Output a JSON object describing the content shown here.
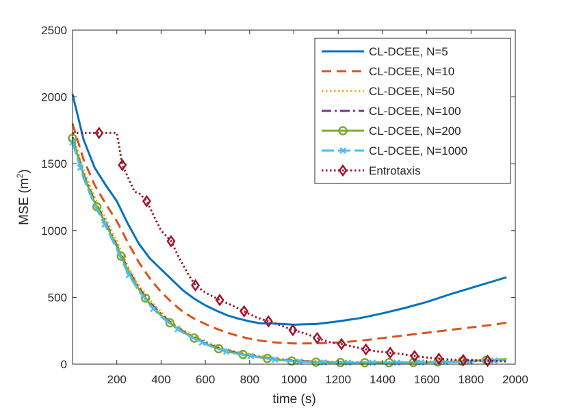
{
  "chart_data": {
    "type": "line",
    "title": "",
    "xlabel": "time (s)",
    "ylabel": "MSE (m",
    "ylabel_sup": "2",
    "ylabel_close": ")",
    "xlim": [
      0,
      2000
    ],
    "ylim": [
      0,
      2500
    ],
    "xticks": [
      200,
      400,
      600,
      800,
      1000,
      1200,
      1400,
      1600,
      1800,
      2000
    ],
    "yticks": [
      0,
      500,
      1000,
      1500,
      2000,
      2500
    ],
    "grid": false,
    "legend_position": "top-right",
    "series": [
      {
        "name": "CL-DCEE, N=5",
        "color": "#0072BD",
        "dash": "solid",
        "marker": "none",
        "x": [
          0,
          50,
          100,
          150,
          200,
          250,
          300,
          350,
          400,
          450,
          500,
          550,
          600,
          650,
          700,
          750,
          800,
          850,
          900,
          950,
          1000,
          1050,
          1100,
          1150,
          1200,
          1300,
          1400,
          1500,
          1600,
          1700,
          1800,
          1900,
          1960
        ],
        "y": [
          2020,
          1680,
          1470,
          1340,
          1220,
          1050,
          900,
          790,
          710,
          630,
          550,
          490,
          440,
          400,
          365,
          340,
          320,
          305,
          305,
          300,
          295,
          298,
          300,
          310,
          320,
          345,
          380,
          420,
          465,
          520,
          570,
          620,
          650
        ]
      },
      {
        "name": "CL-DCEE, N=10",
        "color": "#D95319",
        "dash": "dashed",
        "marker": "none",
        "x": [
          0,
          50,
          100,
          150,
          200,
          250,
          300,
          350,
          400,
          450,
          500,
          550,
          600,
          650,
          700,
          750,
          800,
          850,
          900,
          950,
          1000,
          1050,
          1100,
          1150,
          1200,
          1300,
          1400,
          1500,
          1600,
          1700,
          1800,
          1900,
          1960
        ],
        "y": [
          1800,
          1530,
          1340,
          1200,
          1070,
          910,
          760,
          640,
          540,
          460,
          390,
          340,
          300,
          265,
          235,
          210,
          190,
          175,
          165,
          158,
          155,
          155,
          156,
          158,
          162,
          175,
          195,
          215,
          235,
          255,
          275,
          295,
          310
        ]
      },
      {
        "name": "CL-DCEE, N=50",
        "color": "#EDB120",
        "dash": "dotted",
        "marker": "none",
        "x": [
          0,
          50,
          100,
          150,
          200,
          250,
          300,
          350,
          400,
          450,
          500,
          550,
          600,
          650,
          700,
          750,
          800,
          900,
          1000,
          1100,
          1200,
          1300,
          1400,
          1500,
          1600,
          1700,
          1800,
          1900,
          1960
        ],
        "y": [
          1720,
          1450,
          1250,
          1090,
          920,
          730,
          590,
          480,
          390,
          310,
          255,
          210,
          170,
          135,
          110,
          90,
          75,
          45,
          30,
          22,
          18,
          16,
          16,
          18,
          20,
          24,
          28,
          34,
          38
        ]
      },
      {
        "name": "CL-DCEE, N=100",
        "color": "#7E2F8E",
        "dash": "dashdot",
        "marker": "none",
        "x": [
          0,
          50,
          100,
          150,
          200,
          250,
          300,
          350,
          400,
          450,
          500,
          550,
          600,
          650,
          700,
          750,
          800,
          900,
          1000,
          1100,
          1200,
          1300,
          1400,
          1500,
          1600,
          1700,
          1800,
          1900,
          1960
        ],
        "y": [
          1700,
          1420,
          1220,
          1060,
          890,
          710,
          570,
          460,
          375,
          300,
          245,
          200,
          160,
          125,
          100,
          82,
          68,
          40,
          25,
          18,
          14,
          12,
          12,
          13,
          15,
          18,
          22,
          28,
          32
        ]
      },
      {
        "name": "CL-DCEE, N=200",
        "color": "#77AC30",
        "dash": "solid",
        "marker": "circle",
        "marker_x": [
          0,
          110,
          220,
          330,
          440,
          550,
          660,
          770,
          880,
          990,
          1100,
          1210,
          1320,
          1430,
          1540,
          1650,
          1760,
          1870
        ],
        "x": [
          0,
          50,
          100,
          150,
          200,
          250,
          300,
          350,
          400,
          450,
          500,
          550,
          600,
          650,
          700,
          750,
          800,
          900,
          1000,
          1100,
          1200,
          1300,
          1400,
          1500,
          1600,
          1700,
          1800,
          1900,
          1960
        ],
        "y": [
          1690,
          1410,
          1210,
          1050,
          880,
          700,
          560,
          450,
          365,
          295,
          240,
          195,
          155,
          120,
          95,
          78,
          64,
          38,
          22,
          15,
          12,
          11,
          11,
          12,
          14,
          18,
          24,
          32,
          38
        ]
      },
      {
        "name": "CL-DCEE, N=1000",
        "color": "#4DBEEE",
        "dash": "longdash",
        "marker": "cross",
        "marker_x": [
          0,
          35,
          145,
          255,
          365,
          475,
          585,
          695,
          805,
          915,
          1025,
          1135,
          1245,
          1355,
          1465,
          1575,
          1685,
          1795,
          1905
        ],
        "x": [
          0,
          50,
          100,
          150,
          200,
          250,
          300,
          350,
          400,
          450,
          500,
          550,
          600,
          650,
          700,
          750,
          800,
          900,
          1000,
          1100,
          1200,
          1300,
          1400,
          1500,
          1600,
          1700,
          1800,
          1900,
          1960
        ],
        "y": [
          1660,
          1390,
          1190,
          1030,
          860,
          680,
          545,
          440,
          355,
          290,
          235,
          190,
          150,
          117,
          92,
          75,
          62,
          36,
          21,
          14,
          11,
          10,
          10,
          11,
          13,
          16,
          20,
          26,
          30
        ]
      },
      {
        "name": "Entrotaxis",
        "color": "#A2142F",
        "dash": "dotted",
        "marker": "diamond",
        "marker_x": [
          120,
          225,
          335,
          445,
          555,
          665,
          775,
          885,
          995,
          1105,
          1215,
          1325,
          1435,
          1545,
          1655,
          1765,
          1875
        ],
        "x": [
          0,
          50,
          100,
          150,
          200,
          225,
          250,
          280,
          300,
          335,
          370,
          400,
          445,
          480,
          520,
          555,
          600,
          665,
          720,
          775,
          830,
          885,
          940,
          995,
          1050,
          1105,
          1160,
          1215,
          1270,
          1325,
          1380,
          1435,
          1490,
          1545,
          1600,
          1655,
          1710,
          1765,
          1820,
          1875,
          1960
        ],
        "y": [
          1730,
          1730,
          1730,
          1730,
          1730,
          1490,
          1400,
          1290,
          1280,
          1220,
          1100,
          1000,
          920,
          800,
          680,
          590,
          535,
          480,
          440,
          395,
          350,
          320,
          290,
          255,
          230,
          195,
          165,
          150,
          130,
          110,
          95,
          85,
          75,
          60,
          50,
          40,
          35,
          30,
          28,
          25,
          20
        ]
      }
    ]
  }
}
